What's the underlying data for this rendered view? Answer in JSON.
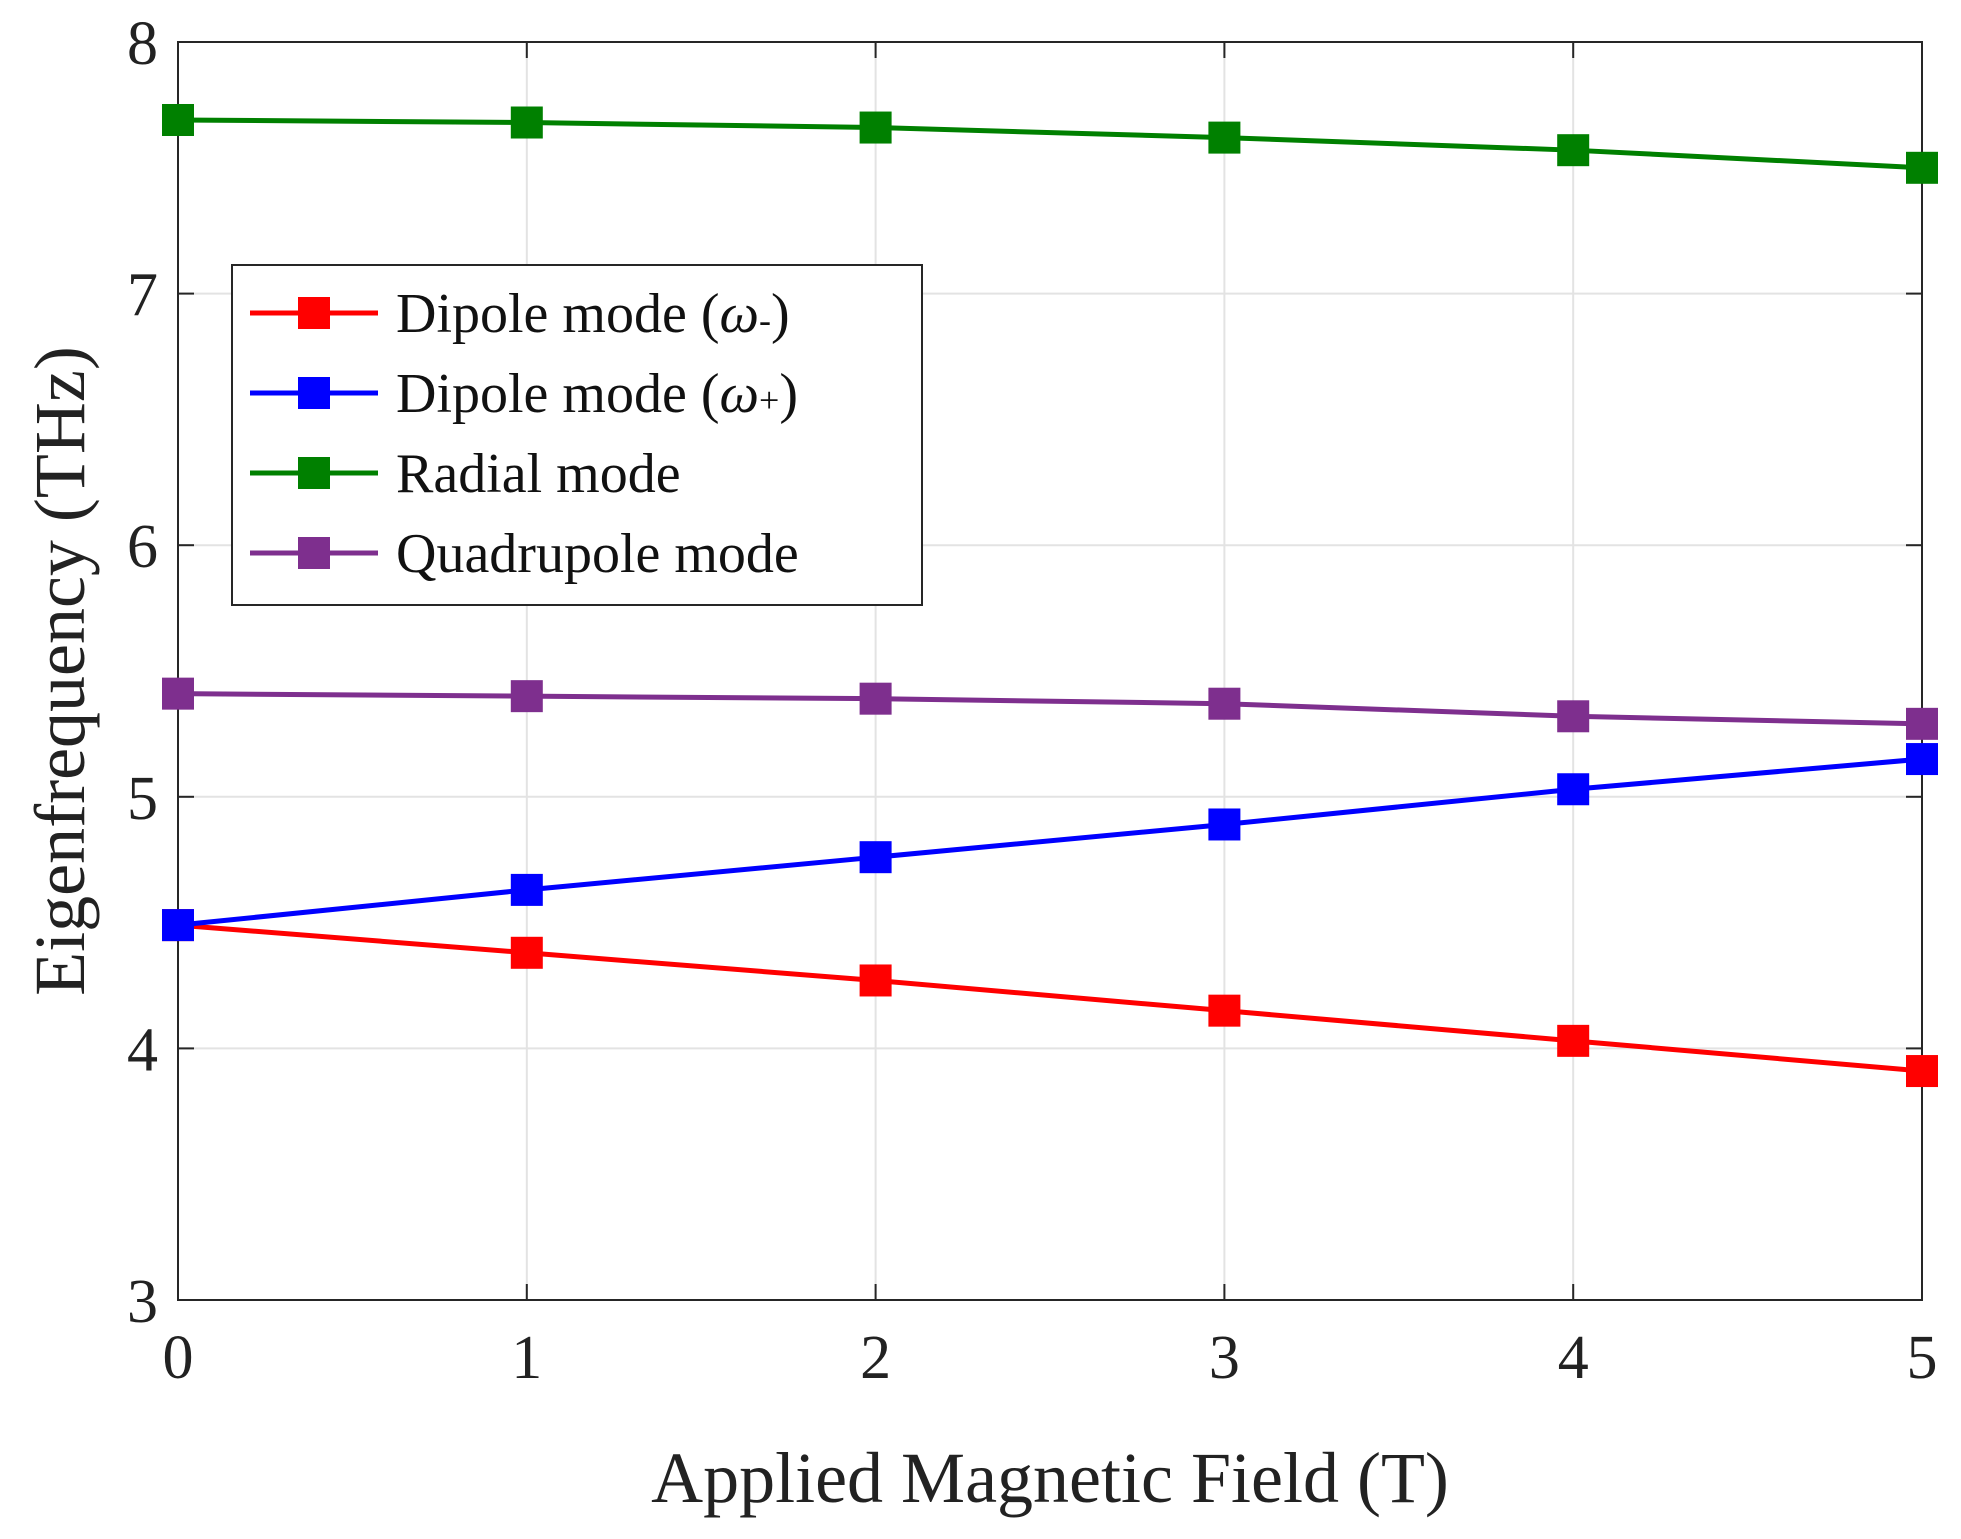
{
  "chart_data": {
    "type": "line",
    "title": "",
    "xlabel": "Applied Magnetic Field (T)",
    "ylabel": "Eigenfrequency (THz)",
    "xlim": [
      0,
      5
    ],
    "ylim": [
      3,
      8
    ],
    "x_ticks": [
      "0",
      "1",
      "2",
      "3",
      "4",
      "5"
    ],
    "y_ticks": [
      "3",
      "4",
      "5",
      "6",
      "7",
      "8"
    ],
    "grid": true,
    "legend_position": "upper-left",
    "x": [
      0,
      1,
      2,
      3,
      4,
      5
    ],
    "series": [
      {
        "name": "Dipole mode (ω-)",
        "legend_main": "Dipole mode (",
        "legend_symbol": "ω",
        "legend_sub": "-",
        "legend_close": ")",
        "color": "#ff0000",
        "marker": "square",
        "values": [
          4.49,
          4.38,
          4.27,
          4.15,
          4.03,
          3.91
        ]
      },
      {
        "name": "Dipole mode (ω+)",
        "legend_main": "Dipole mode (",
        "legend_symbol": "ω",
        "legend_sub": "+",
        "legend_close": ")",
        "color": "#0000ff",
        "marker": "square",
        "values": [
          4.49,
          4.63,
          4.76,
          4.89,
          5.03,
          5.15
        ]
      },
      {
        "name": "Radial mode",
        "legend_main": "Radial mode",
        "legend_symbol": "",
        "legend_sub": "",
        "legend_close": "",
        "color": "#008000",
        "marker": "square",
        "values": [
          7.69,
          7.68,
          7.66,
          7.62,
          7.57,
          7.5
        ]
      },
      {
        "name": "Quadrupole mode",
        "legend_main": "Quadrupole mode",
        "legend_symbol": "",
        "legend_sub": "",
        "legend_close": "",
        "color": "#7e2f8e",
        "marker": "square",
        "values": [
          5.41,
          5.4,
          5.39,
          5.37,
          5.32,
          5.29
        ]
      }
    ]
  }
}
